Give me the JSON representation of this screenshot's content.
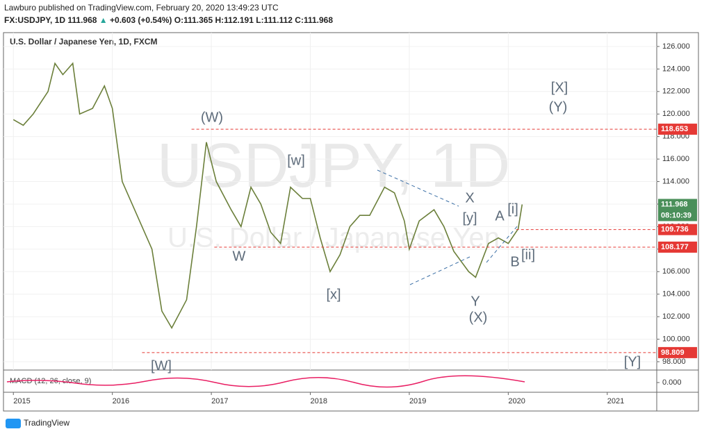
{
  "header": {
    "published": "Lawburo published on TradingView.com, February 20, 2020 13:49:23 UTC",
    "symbol": "FX:USDJPY, 1D",
    "last": "111.968",
    "change": "+0.603 (+0.54%)",
    "open": "O:111.365",
    "high": "H:112.191",
    "low": "L:111.112",
    "close": "C:111.968"
  },
  "footer": "TradingView",
  "chart_data": {
    "type": "line",
    "title": "U.S. Dollar / Japanese Yen, 1D, FXCM",
    "watermark": "USDJPY, 1D",
    "watermark_sub": "U.S. Dollar / Japanese Yen",
    "x": [
      2015.0,
      2015.1,
      2015.2,
      2015.35,
      2015.42,
      2015.5,
      2015.6,
      2015.67,
      2015.8,
      2015.92,
      2016.0,
      2016.1,
      2016.25,
      2016.4,
      2016.5,
      2016.6,
      2016.75,
      2016.85,
      2016.95,
      2017.05,
      2017.2,
      2017.3,
      2017.4,
      2017.5,
      2017.6,
      2017.7,
      2017.8,
      2017.92,
      2018.0,
      2018.1,
      2018.2,
      2018.3,
      2018.4,
      2018.5,
      2018.6,
      2018.75,
      2018.85,
      2018.95,
      2019.0,
      2019.1,
      2019.25,
      2019.35,
      2019.45,
      2019.6,
      2019.67,
      2019.8,
      2019.9,
      2020.0,
      2020.1,
      2020.14
    ],
    "series": [
      {
        "name": "USDJPY",
        "color": "#6b7f3a",
        "values": [
          119.5,
          119,
          120,
          122,
          124.5,
          123.5,
          124.5,
          120,
          120.5,
          122.5,
          120.5,
          114,
          111,
          108,
          102.5,
          101,
          103.5,
          110,
          117.5,
          114,
          111.5,
          110,
          113.5,
          112,
          109.5,
          108.5,
          113.5,
          112.5,
          112.5,
          109,
          106,
          107.5,
          110,
          111,
          111,
          113.5,
          113,
          110.5,
          108,
          110.5,
          111.5,
          110,
          107.8,
          106,
          105.5,
          108.5,
          109,
          108.5,
          109.8,
          111.968
        ]
      }
    ],
    "xlim": [
      2014.9,
      2021.5
    ],
    "xticks": [
      2015,
      2016,
      2017,
      2018,
      2019,
      2020,
      2021
    ],
    "ylim": [
      97.26,
      127.23
    ],
    "yticks": [
      {
        "value": 98,
        "label": "98.000"
      },
      {
        "value": 100,
        "label": "100.000"
      },
      {
        "value": 102,
        "label": "102.000"
      },
      {
        "value": 104,
        "label": "104.000"
      },
      {
        "value": 106,
        "label": "106.000"
      },
      {
        "value": 108,
        "label": "108.000"
      },
      {
        "value": 110,
        "label": "110.000"
      },
      {
        "value": 112,
        "label": "112.000"
      },
      {
        "value": 114,
        "label": "114.000"
      },
      {
        "value": 116,
        "label": "116.000"
      },
      {
        "value": 118,
        "label": "118.000"
      },
      {
        "value": 120,
        "label": "120.000"
      },
      {
        "value": 122,
        "label": "122.000"
      },
      {
        "value": 124,
        "label": "124.000"
      },
      {
        "value": 126,
        "label": "126.000"
      }
    ],
    "grid": true,
    "levels": [
      {
        "value": 118.653,
        "start": 2016.8
      },
      {
        "value": 109.736,
        "start": 2020.08
      },
      {
        "value": 108.177,
        "start": 2017.03
      },
      {
        "value": 98.809,
        "start": 2016.3
      }
    ],
    "level_color": "#e53935",
    "price_marker": 111.968,
    "price_color": "#4a8f5a",
    "countdown": "08:10:39",
    "indicator": "MACD (12, 26, close, 9)",
    "indicator_ticks": [
      {
        "value": 0,
        "label": "0.000"
      }
    ],
    "annotations": [
      "(W)",
      "[w]",
      "W",
      "[x]",
      "X",
      "[y]",
      "Y",
      "(X)",
      "A",
      "[i]",
      "B",
      "[ii]",
      "[X]",
      "(Y)",
      "[W]",
      "[Y]"
    ]
  }
}
